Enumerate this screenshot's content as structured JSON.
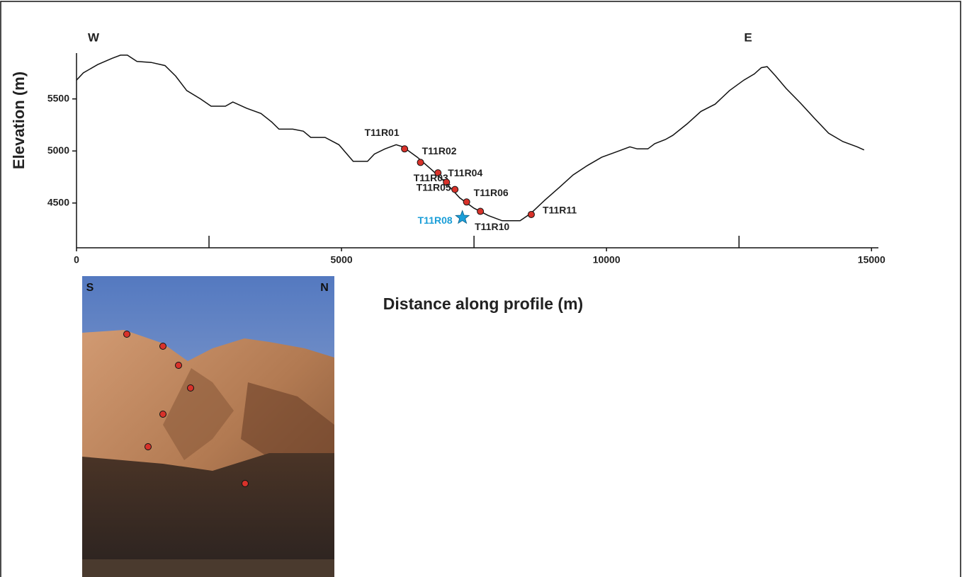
{
  "chart_data": {
    "type": "line",
    "x_label": "Distance along profile (m)",
    "y_label": "Elevation (m)",
    "direction_labels": {
      "left": "W",
      "right": "E"
    },
    "color": "#111111",
    "x": [
      0,
      130,
      400,
      670,
      830,
      960,
      1140,
      1410,
      1670,
      1870,
      2080,
      2340,
      2540,
      2810,
      2950,
      3210,
      3480,
      3680,
      3820,
      4080,
      4280,
      4420,
      4690,
      4950,
      5220,
      5490,
      5620,
      5820,
      6030,
      6160,
      6430,
      6700,
      6960,
      7230,
      7500,
      7770,
      8030,
      8370,
      8570,
      8840,
      9110,
      9370,
      9640,
      9910,
      10180,
      10440,
      10580,
      10780,
      10910,
      11110,
      11250,
      11520,
      11780,
      12050,
      12320,
      12590,
      12790,
      12920,
      13030,
      13190,
      13390,
      13660,
      13930,
      14190,
      14460,
      14730,
      14860
    ],
    "values": [
      5680,
      5750,
      5830,
      5890,
      5920,
      5920,
      5860,
      5850,
      5820,
      5720,
      5580,
      5500,
      5430,
      5430,
      5470,
      5410,
      5360,
      5280,
      5210,
      5210,
      5190,
      5130,
      5130,
      5060,
      4900,
      4900,
      4970,
      5020,
      5060,
      5040,
      4940,
      4820,
      4700,
      4550,
      4450,
      4380,
      4330,
      4330,
      4400,
      4530,
      4650,
      4770,
      4860,
      4940,
      4990,
      5040,
      5020,
      5020,
      5070,
      5110,
      5150,
      5260,
      5380,
      5450,
      5580,
      5680,
      5740,
      5800,
      5810,
      5720,
      5600,
      5460,
      5310,
      5170,
      5090,
      5040,
      5010
    ],
    "xlim": [
      0,
      15130
    ],
    "ylim": [
      4070,
      5940
    ],
    "xticks": [
      0,
      5000,
      10000,
      15000
    ],
    "xminorticks": [
      2500,
      7500,
      12500
    ],
    "yticks": [
      4500,
      5000,
      5500
    ],
    "samples": [
      {
        "name": "T11R01",
        "x": 6190,
        "y": 5020,
        "color": "#d8322a",
        "marker": "circle"
      },
      {
        "name": "T11R02",
        "x": 6490,
        "y": 4890,
        "color": "#d8322a",
        "marker": "circle"
      },
      {
        "name": "T11R03",
        "x": 6820,
        "y": 4790,
        "color": "#d8322a",
        "marker": "circle"
      },
      {
        "name": "T11R04",
        "x": 6980,
        "y": 4700,
        "color": "#d8322a",
        "marker": "circle"
      },
      {
        "name": "T11R05",
        "x": 7140,
        "y": 4630,
        "color": "#d8322a",
        "marker": "circle"
      },
      {
        "name": "T11R06",
        "x": 7360,
        "y": 4510,
        "color": "#d8322a",
        "marker": "circle"
      },
      {
        "name": "T11R10",
        "x": 7620,
        "y": 4420,
        "color": "#d8322a",
        "marker": "circle"
      },
      {
        "name": "T11R11",
        "x": 8580,
        "y": 4390,
        "color": "#d8322a",
        "marker": "circle"
      },
      {
        "name": "T11R08",
        "x": 7280,
        "y": 4360,
        "color": "#1a9ed8",
        "marker": "star"
      }
    ]
  },
  "photo": {
    "left_label": "S",
    "right_label": "N"
  }
}
